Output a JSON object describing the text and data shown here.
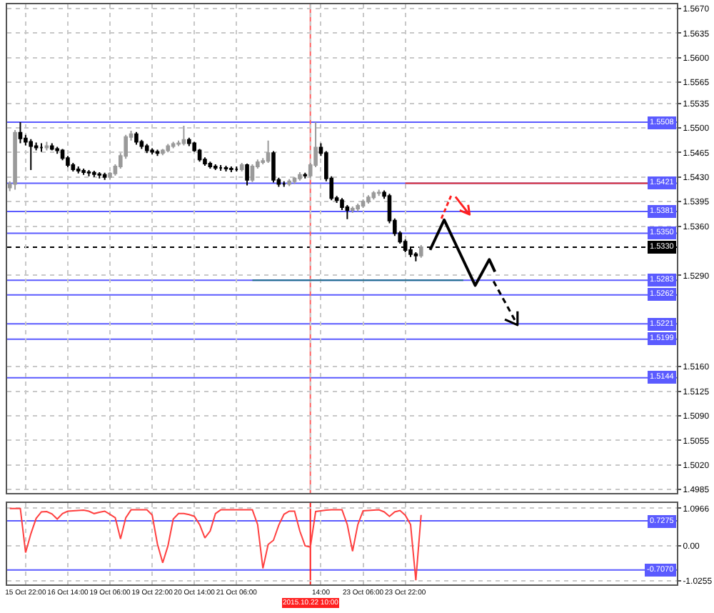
{
  "chart_data": [
    {
      "type": "candlestick",
      "categories": [
        null,
        null,
        null,
        "15 Oct 22:00",
        null,
        null,
        null,
        null,
        null,
        null,
        null,
        "16 Oct 14:00",
        null,
        null,
        null,
        null,
        null,
        null,
        null,
        "19 Oct 06:00",
        null,
        null,
        null,
        null,
        null,
        null,
        null,
        "19 Oct 22:00",
        null,
        null,
        null,
        null,
        null,
        null,
        null,
        "20 Oct 14:00",
        null,
        null,
        null,
        null,
        null,
        null,
        null,
        "21 Oct 06:00",
        null,
        null,
        null,
        null,
        null,
        null,
        null,
        null,
        null,
        null,
        null,
        null,
        null,
        "2015.10.22 10:00",
        null,
        "14:00",
        null,
        null,
        null,
        null,
        null,
        null,
        null,
        "23 Oct 06:00",
        null,
        null,
        null,
        null,
        null,
        null,
        null,
        "23 Oct 22:00",
        null,
        null,
        null,
        null,
        null,
        null,
        null,
        null,
        null,
        null,
        null,
        null,
        null,
        null,
        null,
        null,
        null,
        null,
        null,
        null,
        null,
        null,
        null,
        null,
        null,
        null,
        null,
        null,
        null,
        null,
        null,
        null,
        null,
        null,
        null,
        null,
        null,
        null,
        null,
        null,
        null,
        null,
        null,
        null,
        null,
        null,
        null,
        null,
        null,
        null,
        null
      ],
      "colors": [
        "#9a9a9a",
        "#9a9a9a",
        "#000000",
        "#000000",
        "#000000",
        "#000000",
        "#000000",
        "#9a9a9a",
        "#000000",
        "#000000",
        "#000000",
        "#000000",
        "#000000",
        "#000000",
        "#000000",
        "#000000",
        "#000000",
        "#000000",
        "#000000",
        "#9a9a9a",
        "#9a9a9a",
        "#9a9a9a",
        "#9a9a9a",
        "#9a9a9a",
        "#000000",
        "#000000",
        "#000000",
        "#000000",
        "#000000",
        "#9a9a9a",
        "#9a9a9a",
        "#9a9a9a",
        "#9a9a9a",
        "#9a9a9a",
        "#000000",
        "#000000",
        "#000000",
        "#000000",
        "#000000",
        "#000000",
        "#000000",
        "#000000",
        "#000000",
        "#000000",
        "#9a9a9a",
        "#000000",
        "#9a9a9a",
        "#9a9a9a",
        "#9a9a9a",
        "#9a9a9a",
        "#000000",
        "#000000",
        "#000000",
        "#9a9a9a",
        "#9a9a9a",
        "#9a9a9a",
        "#000000",
        "#9a9a9a",
        "#9a9a9a",
        "#000000",
        "#000000",
        "#000000",
        "#000000",
        "#000000",
        "#000000",
        "#9a9a9a",
        "#9a9a9a",
        "#9a9a9a",
        "#9a9a9a",
        "#9a9a9a",
        "#9a9a9a",
        "#000000",
        "#000000",
        "#000000",
        "#000000",
        "#000000",
        "#000000",
        "#000000",
        "#9a9a9a",
        null,
        null,
        null,
        null,
        null,
        null,
        null,
        null,
        null,
        null,
        null,
        null,
        null,
        null,
        null,
        null,
        null,
        null,
        null,
        null,
        null,
        null,
        null,
        null,
        null,
        null,
        null,
        null,
        null,
        null,
        null,
        null,
        null,
        null,
        null,
        null,
        null,
        null,
        null,
        null,
        null,
        null,
        null,
        null,
        null,
        null,
        null,
        null
      ],
      "ohlc": [
        [
          1.5415,
          1.5424,
          1.541,
          1.542
        ],
        [
          1.542,
          1.5497,
          1.5412,
          1.5493
        ],
        [
          1.5493,
          1.5508,
          1.5478,
          1.5485
        ],
        [
          1.5485,
          1.549,
          1.5475,
          1.548
        ],
        [
          1.548,
          1.5484,
          1.544,
          1.5474
        ],
        [
          1.5474,
          1.5479,
          1.5468,
          1.5472
        ],
        [
          1.5472,
          1.5478,
          1.5466,
          1.5472
        ],
        [
          1.5472,
          1.548,
          1.5468,
          1.5474
        ],
        [
          1.5474,
          1.5478,
          1.5468,
          1.547
        ],
        [
          1.547,
          1.5473,
          1.5463,
          1.5468
        ],
        [
          1.5468,
          1.547,
          1.5454,
          1.5457
        ],
        [
          1.5457,
          1.546,
          1.5444,
          1.5447
        ],
        [
          1.5447,
          1.545,
          1.5438,
          1.5441
        ],
        [
          1.5441,
          1.5445,
          1.5435,
          1.5439
        ],
        [
          1.5439,
          1.5442,
          1.5433,
          1.5437
        ],
        [
          1.5437,
          1.544,
          1.5431,
          1.5436
        ],
        [
          1.5436,
          1.5439,
          1.543,
          1.5434
        ],
        [
          1.5434,
          1.5437,
          1.5428,
          1.5433
        ],
        [
          1.5433,
          1.5436,
          1.5426,
          1.543
        ],
        [
          1.543,
          1.5437,
          1.5427,
          1.5435
        ],
        [
          1.5435,
          1.5448,
          1.5432,
          1.5445
        ],
        [
          1.5445,
          1.5464,
          1.5442,
          1.546
        ],
        [
          1.546,
          1.549,
          1.5456,
          1.5487
        ],
        [
          1.5487,
          1.5496,
          1.5482,
          1.5491
        ],
        [
          1.5491,
          1.5494,
          1.5476,
          1.548
        ],
        [
          1.548,
          1.5483,
          1.547,
          1.5474
        ],
        [
          1.5474,
          1.5477,
          1.5464,
          1.5468
        ],
        [
          1.5468,
          1.5471,
          1.5462,
          1.5466
        ],
        [
          1.5466,
          1.5469,
          1.546,
          1.5464
        ],
        [
          1.5464,
          1.547,
          1.5461,
          1.5468
        ],
        [
          1.5468,
          1.5477,
          1.5465,
          1.5474
        ],
        [
          1.5474,
          1.548,
          1.5471,
          1.5477
        ],
        [
          1.5477,
          1.5482,
          1.5474,
          1.5478
        ],
        [
          1.5478,
          1.5503,
          1.5475,
          1.5483
        ],
        [
          1.5483,
          1.5486,
          1.5474,
          1.5478
        ],
        [
          1.5478,
          1.548,
          1.5466,
          1.5468
        ],
        [
          1.5468,
          1.547,
          1.5452,
          1.5455
        ],
        [
          1.5455,
          1.5458,
          1.5446,
          1.5449
        ],
        [
          1.5449,
          1.5452,
          1.5442,
          1.5445
        ],
        [
          1.5445,
          1.5448,
          1.544,
          1.5443
        ],
        [
          1.5443,
          1.5447,
          1.5439,
          1.5443
        ],
        [
          1.5443,
          1.5446,
          1.5438,
          1.5442
        ],
        [
          1.5442,
          1.5445,
          1.5437,
          1.5441
        ],
        [
          1.5441,
          1.5445,
          1.5438,
          1.5441
        ],
        [
          1.5441,
          1.545,
          1.5438,
          1.5447
        ],
        [
          1.5447,
          1.5449,
          1.5418,
          1.5426
        ],
        [
          1.5426,
          1.5448,
          1.5423,
          1.5445
        ],
        [
          1.5445,
          1.5455,
          1.5442,
          1.5451
        ],
        [
          1.5451,
          1.5457,
          1.5448,
          1.5453
        ],
        [
          1.5453,
          1.5482,
          1.545,
          1.5464
        ],
        [
          1.5464,
          1.5467,
          1.5422,
          1.5426
        ],
        [
          1.5426,
          1.5429,
          1.5416,
          1.542
        ],
        [
          1.542,
          1.5424,
          1.5416,
          1.542
        ],
        [
          1.542,
          1.5427,
          1.5417,
          1.5424
        ],
        [
          1.5424,
          1.543,
          1.542,
          1.5428
        ],
        [
          1.5428,
          1.5437,
          1.5425,
          1.5433
        ],
        [
          1.5433,
          1.5436,
          1.5428,
          1.5432
        ],
        [
          1.5432,
          1.545,
          1.5429,
          1.5447
        ],
        [
          1.5447,
          1.5508,
          1.5444,
          1.5472
        ],
        [
          1.5472,
          1.5478,
          1.546,
          1.5464
        ],
        [
          1.5464,
          1.5467,
          1.5424,
          1.5428
        ],
        [
          1.5428,
          1.5431,
          1.5397,
          1.54
        ],
        [
          1.54,
          1.5403,
          1.5393,
          1.5397
        ],
        [
          1.5397,
          1.54,
          1.5383,
          1.5387
        ],
        [
          1.5387,
          1.539,
          1.537,
          1.5383
        ],
        [
          1.5383,
          1.5388,
          1.5379,
          1.5385
        ],
        [
          1.5385,
          1.5392,
          1.5381,
          1.5389
        ],
        [
          1.5389,
          1.5398,
          1.5386,
          1.5395
        ],
        [
          1.5395,
          1.5404,
          1.5392,
          1.5401
        ],
        [
          1.5401,
          1.541,
          1.5398,
          1.5407
        ],
        [
          1.5407,
          1.5412,
          1.5403,
          1.5408
        ],
        [
          1.5408,
          1.5411,
          1.5399,
          1.5403
        ],
        [
          1.5403,
          1.5406,
          1.5364,
          1.5368
        ],
        [
          1.5368,
          1.5371,
          1.5346,
          1.535
        ],
        [
          1.535,
          1.5353,
          1.5335,
          1.5338
        ],
        [
          1.5338,
          1.5341,
          1.5323,
          1.5326
        ],
        [
          1.5326,
          1.5329,
          1.5316,
          1.532
        ],
        [
          1.532,
          1.5323,
          1.531,
          1.5318
        ],
        [
          1.5318,
          1.5333,
          1.5315,
          1.533
        ],
        null,
        null,
        null,
        null,
        null,
        null,
        null,
        null,
        null,
        null,
        null,
        null,
        null,
        null,
        null,
        null,
        null,
        null,
        null,
        null,
        null,
        null,
        null,
        null,
        null,
        null,
        null,
        null,
        null,
        null,
        null,
        null,
        null,
        null,
        null,
        null,
        null,
        null,
        null,
        null,
        null,
        null,
        null,
        null,
        null,
        null,
        null,
        null
      ],
      "series": [
        {
          "type": "line",
          "color": "#e03030",
          "values": [
            null,
            null,
            null,
            null,
            null,
            null,
            null,
            null,
            null,
            null,
            null,
            null,
            null,
            null,
            null,
            null,
            null,
            null,
            null,
            null,
            null,
            null,
            null,
            null,
            null,
            null,
            null,
            null,
            null,
            null,
            null,
            null,
            null,
            null,
            null,
            null,
            null,
            null,
            null,
            null,
            null,
            null,
            null,
            null,
            null,
            null,
            null,
            null,
            null,
            null,
            null,
            null,
            null,
            null,
            null,
            null,
            null,
            null,
            null,
            null,
            null,
            null,
            null,
            null,
            null,
            null,
            null,
            null,
            null,
            null,
            null,
            null,
            null,
            null,
            null,
            1.5421,
            1.5421,
            1.5421,
            1.5421,
            1.5421,
            1.5421,
            1.5421,
            1.5421,
            1.5421,
            1.5421,
            1.5421,
            1.5421,
            1.5421,
            1.5421,
            1.5421,
            1.5421,
            1.5421,
            1.5421,
            1.5421,
            1.5421,
            1.5421,
            1.5421,
            1.5421,
            1.5421,
            1.5421,
            1.5421,
            1.5421,
            1.5421,
            1.5421,
            1.5421,
            1.5421,
            1.5421,
            1.5421,
            1.5421,
            1.5421,
            1.5421,
            1.5421,
            1.5421,
            1.5421,
            1.5421,
            1.5421,
            1.5421,
            1.5421,
            1.5421,
            1.5421,
            1.5421,
            1.5421,
            null,
            null,
            null,
            null,
            null
          ]
        },
        {
          "type": "line",
          "color": "#1f6f8b",
          "values": [
            null,
            null,
            null,
            null,
            null,
            null,
            null,
            null,
            null,
            null,
            null,
            null,
            null,
            null,
            null,
            null,
            null,
            null,
            null,
            null,
            null,
            null,
            null,
            null,
            null,
            null,
            null,
            null,
            null,
            null,
            null,
            null,
            null,
            null,
            null,
            null,
            null,
            null,
            null,
            null,
            null,
            null,
            null,
            null,
            null,
            null,
            1.5283,
            1.5283,
            1.5283,
            1.5283,
            1.5283,
            1.5283,
            1.5283,
            1.5283,
            1.5283,
            1.5283,
            1.5283,
            1.5283,
            1.5283,
            1.5283,
            1.5283,
            1.5283,
            1.5283,
            1.5283,
            1.5283,
            1.5283,
            1.5283,
            1.5283,
            1.5283,
            1.5283,
            1.5283,
            1.5283,
            1.5283,
            1.5283,
            1.5283,
            1.5283,
            1.5283,
            1.5283,
            1.5283,
            1.5283,
            1.5283,
            1.5283,
            1.5283,
            1.5283,
            1.5283,
            1.5283,
            1.5283,
            null,
            null,
            null,
            null,
            null,
            null,
            null,
            null,
            null,
            null,
            null,
            null,
            null,
            null,
            null,
            null,
            null,
            null,
            null,
            null,
            null,
            null,
            null,
            null,
            null,
            null,
            null,
            null,
            null,
            null,
            null,
            null,
            null,
            null,
            null,
            null,
            null,
            null,
            null,
            null
          ]
        }
      ],
      "ylim": [
        1.498,
        1.5676
      ],
      "yticks": [
        {
          "value": 1.567,
          "label": "1.5670"
        },
        1.5635,
        {
          "value": 1.56,
          "label": "1.5600"
        },
        1.5565,
        1.5535,
        {
          "value": 1.55,
          "label": "1.5500"
        },
        1.5465,
        {
          "value": 1.543,
          "label": "1.5430"
        },
        1.5395,
        {
          "value": 1.536,
          "label": "1.5360"
        },
        {
          "value": 1.529,
          "label": "1.5290"
        },
        {
          "value": 1.516,
          "label": "1.5160"
        },
        1.5125,
        {
          "value": 1.509,
          "label": "1.5090"
        },
        1.5055,
        {
          "value": 1.502,
          "label": "1.5020"
        },
        1.4985
      ],
      "tick_labels": "y",
      "grid": true,
      "ref_lines": [
        {
          "axis": "y",
          "value": 1.5508,
          "label": "1.5508",
          "color": "#5b5bff"
        },
        {
          "axis": "y",
          "value": 1.5421,
          "label": "1.5421",
          "color": "#5b5bff"
        },
        {
          "axis": "y",
          "value": 1.5381,
          "label": "1.5381",
          "color": "#5b5bff"
        },
        {
          "axis": "y",
          "value": 1.535,
          "label": "1.5350",
          "color": "#5b5bff"
        },
        {
          "axis": "y",
          "value": 1.533,
          "label": "1.5330",
          "color": "#000000",
          "line_style": "dotted"
        },
        {
          "axis": "y",
          "value": 1.5283,
          "label": "1.5283",
          "color": "#5b5bff"
        },
        {
          "axis": "y",
          "value": 1.5262,
          "label": "1.5262",
          "color": "#5b5bff"
        },
        {
          "axis": "y",
          "value": 1.5221,
          "label": "1.5221",
          "color": "#5b5bff"
        },
        {
          "axis": "y",
          "value": 1.5199,
          "label": "1.5199",
          "color": "#5b5bff"
        },
        {
          "axis": "y",
          "value": 1.5144,
          "label": "1.5144",
          "color": "#5b5bff"
        },
        {
          "axis": "x",
          "value": "2015.10.22 10:00",
          "color": "#ff6060"
        }
      ]
    },
    {
      "type": "line",
      "color": "#ff4040",
      "marker": "none",
      "categories": [
        null,
        null,
        null,
        "15 Oct 22:00",
        null,
        null,
        null,
        null,
        null,
        null,
        null,
        "16 Oct 14:00",
        null,
        null,
        null,
        null,
        null,
        null,
        null,
        "19 Oct 06:00",
        null,
        null,
        null,
        null,
        null,
        null,
        null,
        "19 Oct 22:00",
        null,
        null,
        null,
        null,
        null,
        null,
        null,
        "20 Oct 14:00",
        null,
        null,
        null,
        null,
        null,
        null,
        null,
        "21 Oct 06:00",
        null,
        null,
        null,
        null,
        null,
        null,
        null,
        null,
        null,
        null,
        null,
        null,
        null,
        "2015.10.22 10:00",
        null,
        "14:00",
        null,
        null,
        null,
        null,
        null,
        null,
        null,
        "23 Oct 06:00",
        null,
        null,
        null,
        null,
        null,
        null,
        null,
        "23 Oct 22:00",
        null,
        null,
        null,
        null,
        null,
        null,
        null,
        null,
        null,
        null,
        null,
        null,
        null,
        null,
        null,
        null,
        null,
        null,
        null,
        null,
        null,
        null,
        null,
        null,
        null,
        null,
        null,
        null,
        null,
        null,
        null,
        null,
        null,
        null,
        null,
        null,
        null,
        null,
        null,
        null,
        null,
        null,
        null,
        null,
        null,
        null,
        null,
        null,
        null,
        null,
        null
      ],
      "values": [
        1.09,
        1.09,
        1.09,
        -0.2,
        0.35,
        0.8,
        0.99,
        1.0,
        0.93,
        0.78,
        0.94,
        1.01,
        1.02,
        1.03,
        1.04,
        1.01,
        0.94,
        0.98,
        1.01,
        0.92,
        0.82,
        0.2,
        0.82,
        1.05,
        1.05,
        1.05,
        1.05,
        0.9,
        0.05,
        -0.5,
        0,
        0.78,
        0.94,
        0.94,
        0.91,
        0.86,
        0.62,
        0.23,
        0.43,
        0.94,
        1.05,
        1.05,
        1.05,
        1.05,
        1.05,
        1.05,
        1.05,
        0.62,
        -0.66,
        0.04,
        0.16,
        0.6,
        0.92,
        1.01,
        1.01,
        0.43,
        0,
        -0.04,
        1.0,
        1.02,
        1.04,
        1.05,
        1.05,
        1.05,
        0.62,
        -0.16,
        0.62,
        1.02,
        1.03,
        1.04,
        1.05,
        0.99,
        0.86,
        0.99,
        1.03,
        0.89,
        0.62,
        -1.01,
        0.9,
        null,
        null,
        null,
        null,
        null,
        null,
        null,
        null,
        null,
        null,
        null,
        null,
        null,
        null,
        null,
        null,
        null,
        null,
        null,
        null,
        null,
        null,
        null,
        null,
        null,
        null,
        null,
        null,
        null,
        null,
        null,
        null,
        null,
        null,
        null,
        null,
        null,
        null,
        null,
        null,
        null,
        null,
        null,
        null,
        null,
        null,
        null,
        null
      ],
      "ylim": [
        -1.13,
        1.25
      ],
      "yticks": [
        1.0966,
        {
          "value": 0,
          "label": "0.00"
        },
        -1.0255
      ],
      "grid": true,
      "ref_lines": [
        {
          "axis": "y",
          "value": 0.7275,
          "label": "0.7275",
          "color": "#5b5bff"
        },
        {
          "axis": "y",
          "value": -0.707,
          "label": "-0.7070",
          "color": "#5b5bff"
        },
        {
          "axis": "x",
          "value": "2015.10.22 10:00",
          "color": "#ff2020"
        }
      ]
    }
  ]
}
